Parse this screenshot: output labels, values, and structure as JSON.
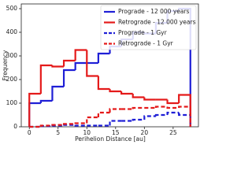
{
  "chart_data": {
    "type": "histogram",
    "xlabel": "Perihelion Distance [au]",
    "ylabel": "Frequency",
    "bins": [
      0,
      2,
      4,
      6,
      8,
      10,
      12,
      14,
      16,
      18,
      20,
      22,
      24,
      26,
      28
    ],
    "series": [
      {
        "name": "Prograde - 12 000 years",
        "color": "#1f1fd6",
        "dashed": false,
        "values": [
          100,
          110,
          170,
          240,
          270,
          270,
          310,
          340,
          370,
          400,
          395,
          440,
          490,
          500
        ]
      },
      {
        "name": "Retrograde - 12 000 years",
        "color": "#e41a1a",
        "dashed": false,
        "values": [
          140,
          260,
          255,
          280,
          325,
          215,
          160,
          150,
          140,
          125,
          115,
          115,
          100,
          135
        ]
      },
      {
        "name": "Prograde - 1 Gyr",
        "color": "#1f1fd6",
        "dashed": true,
        "values": [
          0,
          3,
          5,
          8,
          5,
          5,
          5,
          25,
          25,
          30,
          45,
          50,
          60,
          50
        ]
      },
      {
        "name": "Retrograde - 1 Gyr",
        "color": "#e41a1a",
        "dashed": true,
        "values": [
          0,
          5,
          8,
          12,
          15,
          40,
          60,
          75,
          75,
          80,
          80,
          85,
          80,
          85
        ]
      }
    ],
    "xlim": [
      -1.4,
      29.4
    ],
    "ylim": [
      0,
      520
    ],
    "xticks": [
      0,
      5,
      10,
      15,
      20,
      25
    ],
    "yticks": [
      0,
      100,
      200,
      300,
      400,
      500
    ],
    "legend": "upper right"
  }
}
